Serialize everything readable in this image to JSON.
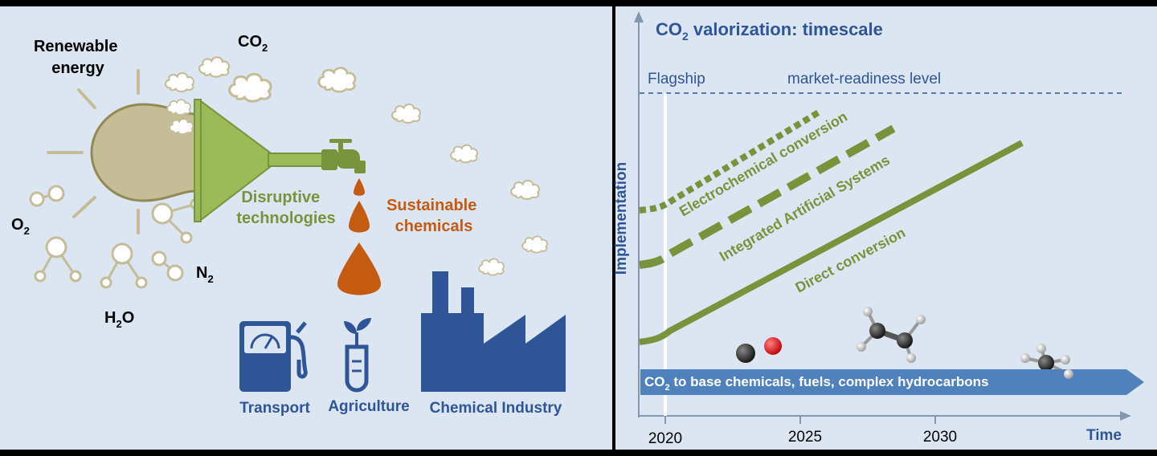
{
  "colors": {
    "panel_bg": "#dce6f2",
    "green": "#77933c",
    "green_light": "#9bbb59",
    "orange": "#c55a11",
    "blue": "#2f5597",
    "blue_arrow": "#4f81bd",
    "sun_fill": "#c4bd97",
    "sun_stroke": "#938953"
  },
  "left": {
    "renewable_line1": "Renewable",
    "renewable_line2": "energy",
    "co2": "CO",
    "co2_sub": "2",
    "o2": "O",
    "o2_sub": "2",
    "n2": "N",
    "n2_sub": "2",
    "h2o_h": "H",
    "h2o_sub": "2",
    "h2o_o": "O",
    "disruptive_line1": "Disruptive",
    "disruptive_line2": "technologies",
    "sustainable_line1": "Sustainable",
    "sustainable_line2": "chemicals",
    "sectors": [
      "Transport",
      "Agriculture",
      "Chemical Industry"
    ]
  },
  "right": {
    "title_pre": "CO",
    "title_sub": "2",
    "title_post": " valorization: timescale",
    "flagship": "Flagship",
    "market_readiness": "market-readiness level",
    "y_label": "Implementation",
    "x_label": "Time",
    "x_ticks": [
      "2020",
      "2025",
      "2030"
    ],
    "arrow_pre": "CO",
    "arrow_sub": "2",
    "arrow_post": " to base chemicals, fuels, complex hydrocarbons",
    "lines": [
      {
        "label": "Electrochemical conversion",
        "style": "dotted"
      },
      {
        "label": "Integrated Artificial Systems",
        "style": "dashed"
      },
      {
        "label": "Direct conversion",
        "style": "solid"
      }
    ],
    "molecules": [
      "carbon-monoxide",
      "ethylene",
      "methane"
    ]
  }
}
